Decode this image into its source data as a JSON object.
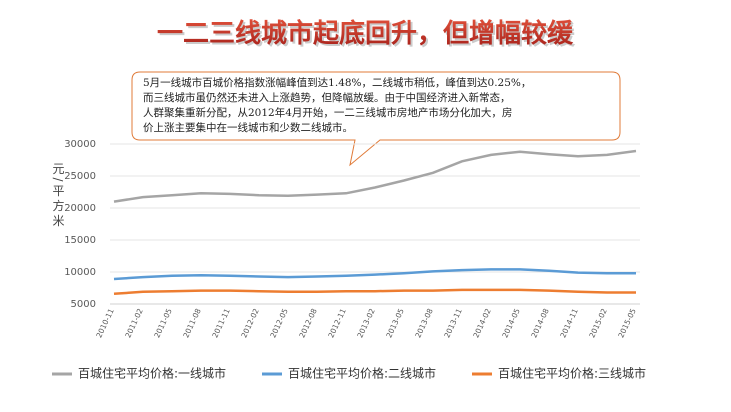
{
  "chart_data": {
    "type": "line",
    "title": "一二三线城市起底回升，但增幅较缓",
    "annotation": [
      "5月一线城市百城价格指数涨幅峰值到达1.48%，二线城市稍低，峰值到达0.25%，",
      "而三线城市虽仍然还未进入上涨趋势，但降幅放缓。由于中国经济进入新常态，",
      "人群聚集重新分配，从2012年4月开始，一二三线城市房地产市场分化加大，房",
      "价上涨主要集中在一线城市和少数二线城市。"
    ],
    "y_label": "元/平方米",
    "categories": [
      "2010-11",
      "2011-02",
      "2011-05",
      "2011-08",
      "2011-11",
      "2012-02",
      "2012-05",
      "2012-08",
      "2012-11",
      "2013-02",
      "2013-05",
      "2013-08",
      "2013-11",
      "2014-02",
      "2014-05",
      "2014-08",
      "2014-11",
      "2015-02",
      "2015-05"
    ],
    "series": [
      {
        "name": "百城住宅平均价格:一线城市",
        "color": "#a5a5a5",
        "values": [
          21000,
          21700,
          22000,
          22300,
          22200,
          22000,
          21900,
          22100,
          22300,
          23200,
          24300,
          25500,
          27300,
          28300,
          28800,
          28400,
          28100,
          28300,
          28900
        ]
      },
      {
        "name": "百城住宅平均价格:二线城市",
        "color": "#5b9bd5",
        "values": [
          8900,
          9200,
          9400,
          9500,
          9400,
          9300,
          9200,
          9300,
          9400,
          9600,
          9800,
          10100,
          10300,
          10400,
          10400,
          10200,
          9900,
          9800,
          9800
        ]
      },
      {
        "name": "百城住宅平均价格:三线城市",
        "color": "#ed7d31",
        "values": [
          6600,
          6900,
          7000,
          7100,
          7100,
          7000,
          6900,
          6900,
          7000,
          7000,
          7100,
          7100,
          7200,
          7200,
          7200,
          7100,
          6900,
          6800,
          6800
        ]
      }
    ],
    "ylim": [
      5000,
      30000
    ],
    "yticks": [
      5000,
      10000,
      15000,
      20000,
      25000,
      30000
    ],
    "grid": true
  }
}
